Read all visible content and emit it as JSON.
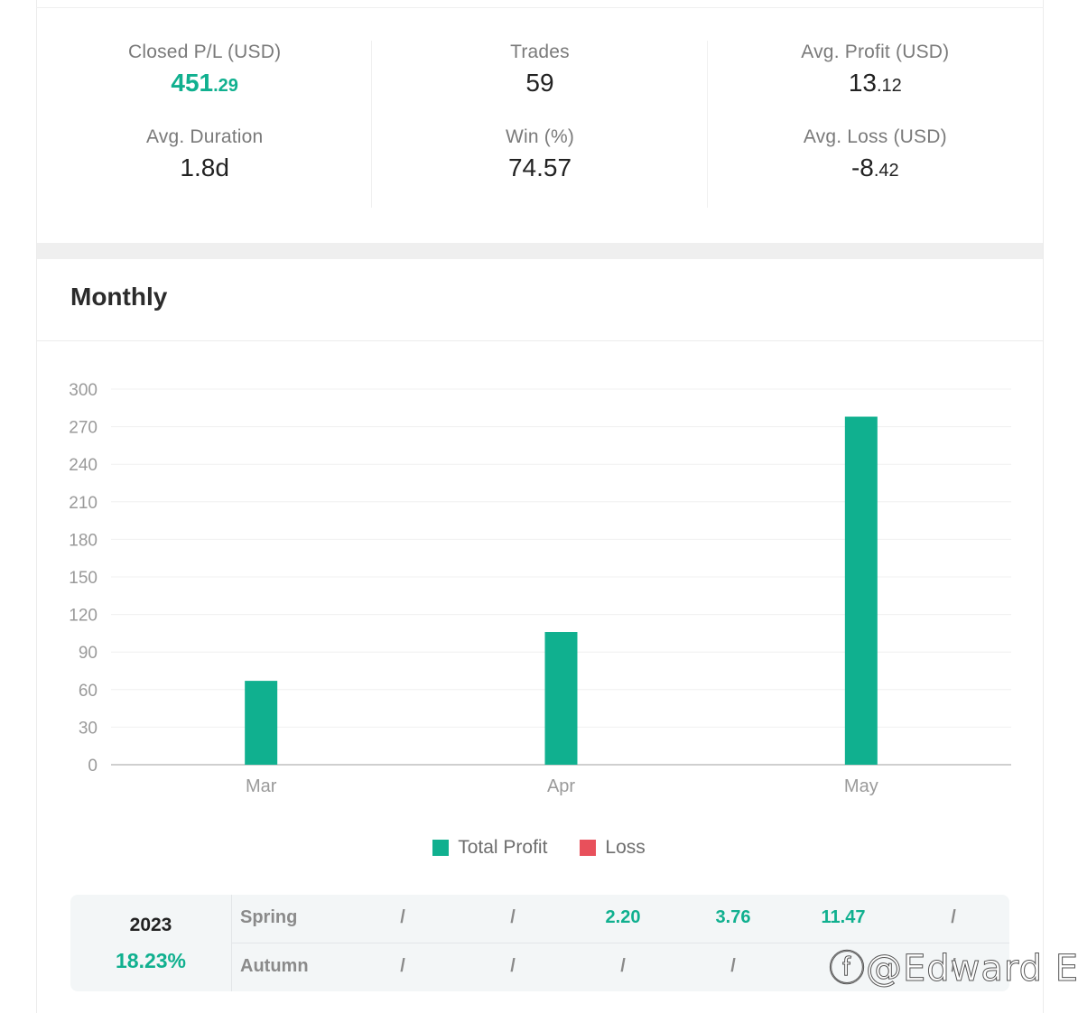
{
  "stats": {
    "closed_pl": {
      "label": "Closed P/L (USD)",
      "int": "451",
      "dec": ".29"
    },
    "trades": {
      "label": "Trades",
      "value": "59"
    },
    "avg_profit": {
      "label": "Avg. Profit (USD)",
      "int": "13",
      "dec": ".12"
    },
    "avg_duration": {
      "label": "Avg. Duration",
      "value": "1.8d"
    },
    "win": {
      "label": "Win (%)",
      "value": "74.57"
    },
    "avg_loss": {
      "label": "Avg. Loss (USD)",
      "int": "-8",
      "dec": ".42"
    }
  },
  "monthly": {
    "title": "Monthly"
  },
  "chart_data": {
    "type": "bar",
    "categories": [
      "Mar",
      "Apr",
      "May"
    ],
    "series": [
      {
        "name": "Total Profit",
        "color": "#10b08f",
        "values": [
          67,
          106,
          278
        ]
      },
      {
        "name": "Loss",
        "color": "#e8505b",
        "values": [
          0,
          0,
          0
        ]
      }
    ],
    "yticks": [
      0,
      30,
      60,
      90,
      120,
      150,
      180,
      210,
      240,
      270,
      300
    ],
    "ylim": [
      0,
      300
    ],
    "grid": true,
    "legend": "bottom-center"
  },
  "legend": {
    "profit": "Total Profit",
    "loss": "Loss"
  },
  "returns": {
    "year": "2023",
    "pct": "18.23%",
    "rows": [
      {
        "label": "Spring",
        "cells": [
          "/",
          "/",
          "2.20",
          "3.76",
          "11.47",
          "/"
        ]
      },
      {
        "label": "Autumn",
        "cells": [
          "/",
          "/",
          "/",
          "/",
          "",
          "/"
        ]
      }
    ]
  },
  "watermark": "ⓕ@Edward El"
}
